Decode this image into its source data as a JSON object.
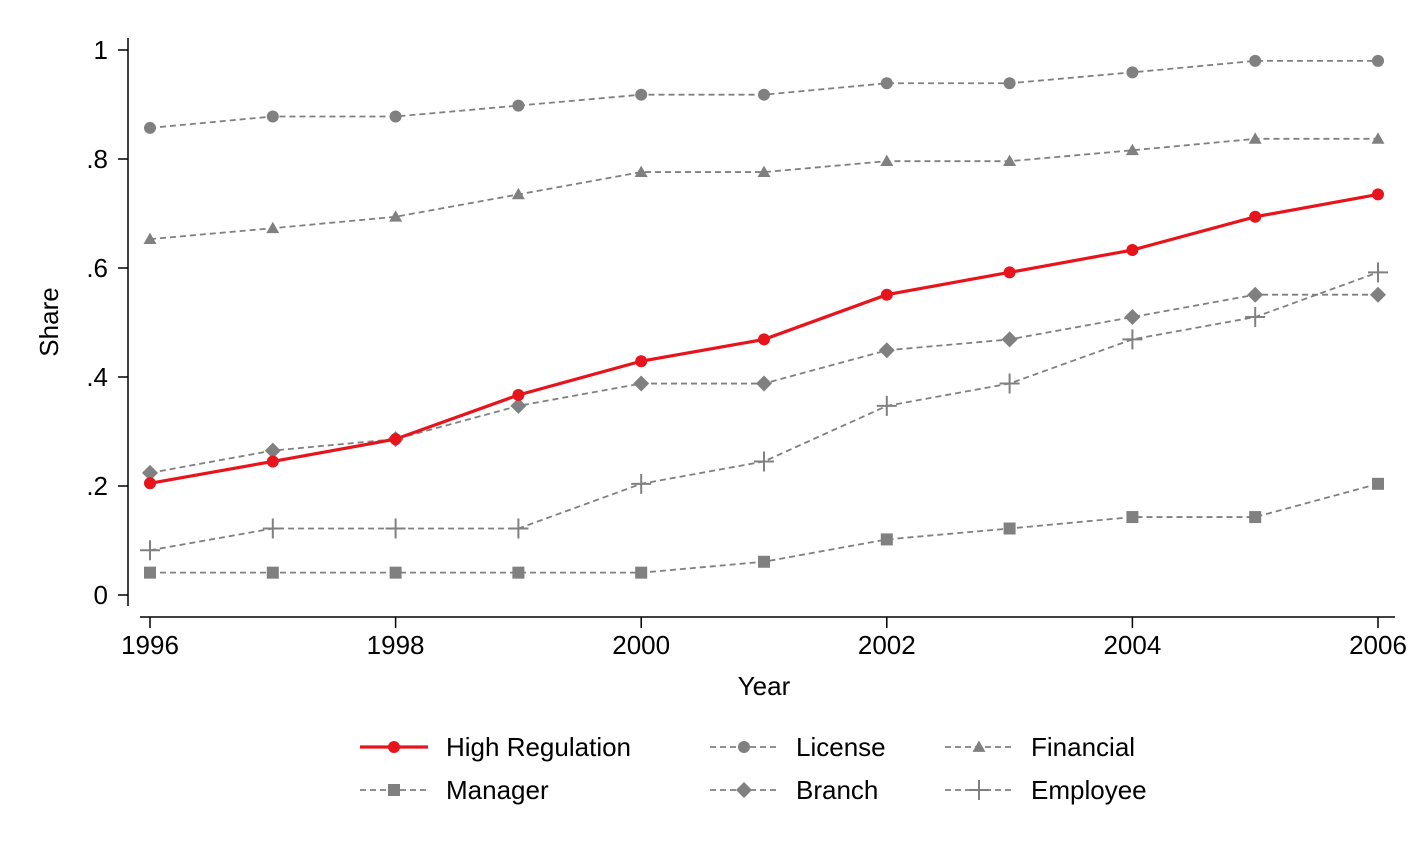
{
  "chart_data": {
    "type": "line",
    "title": "",
    "xlabel": "Year",
    "ylabel": "Share",
    "xlim": [
      1996,
      2006
    ],
    "ylim": [
      0,
      1
    ],
    "x": [
      1996,
      1997,
      1998,
      1999,
      2000,
      2001,
      2002,
      2003,
      2004,
      2005,
      2006
    ],
    "x_ticks": [
      1996,
      1998,
      2000,
      2002,
      2004,
      2006
    ],
    "x_tick_labels": [
      "1996",
      "1998",
      "2000",
      "2002",
      "2004",
      "2006"
    ],
    "y_ticks": [
      0,
      0.2,
      0.4,
      0.6,
      0.8,
      1
    ],
    "y_tick_labels": [
      "0",
      ".2",
      ".4",
      ".6",
      ".8",
      "1"
    ],
    "grid": false,
    "legend_position": "bottom",
    "series": [
      {
        "name": "High Regulation",
        "color": "#e8141c",
        "line": "solid",
        "marker": "circle",
        "values": [
          0.205,
          0.245,
          0.286,
          0.367,
          0.429,
          0.469,
          0.551,
          0.592,
          0.633,
          0.694,
          0.735
        ]
      },
      {
        "name": "License",
        "color": "#808080",
        "line": "dashed",
        "marker": "circle",
        "values": [
          0.857,
          0.878,
          0.878,
          0.898,
          0.918,
          0.918,
          0.939,
          0.939,
          0.959,
          0.98,
          0.98
        ]
      },
      {
        "name": "Financial",
        "color": "#808080",
        "line": "dashed",
        "marker": "triangle",
        "values": [
          0.653,
          0.673,
          0.694,
          0.735,
          0.776,
          0.776,
          0.796,
          0.796,
          0.816,
          0.837,
          0.837
        ]
      },
      {
        "name": "Manager",
        "color": "#808080",
        "line": "dashed",
        "marker": "square",
        "values": [
          0.041,
          0.041,
          0.041,
          0.041,
          0.041,
          0.061,
          0.102,
          0.122,
          0.143,
          0.143,
          0.204
        ]
      },
      {
        "name": "Branch",
        "color": "#808080",
        "line": "dashed",
        "marker": "diamond",
        "values": [
          0.224,
          0.265,
          0.286,
          0.347,
          0.388,
          0.388,
          0.449,
          0.469,
          0.51,
          0.551,
          0.551
        ]
      },
      {
        "name": "Employee",
        "color": "#808080",
        "line": "dashed",
        "marker": "plus",
        "values": [
          0.082,
          0.122,
          0.122,
          0.122,
          0.204,
          0.245,
          0.347,
          0.388,
          0.469,
          0.51,
          0.592
        ]
      }
    ]
  }
}
